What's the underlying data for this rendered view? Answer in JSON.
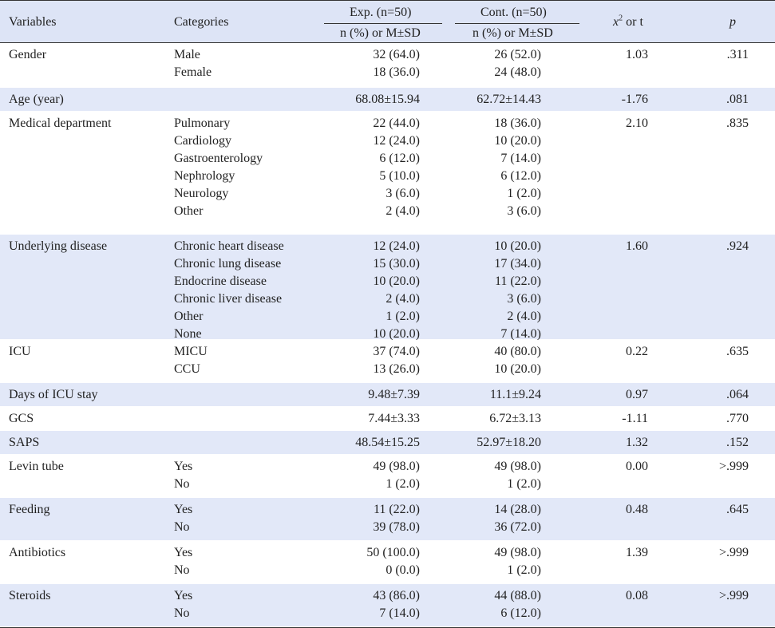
{
  "header": {
    "variables": "Variables",
    "categories": "Categories",
    "exp_group": "Exp. (n=50)",
    "cont_group": "Cont. (n=50)",
    "exp_sub": "n (%) or M±SD",
    "cont_sub": "n (%) or M±SD",
    "stat_x": "x",
    "stat_sup": "2",
    "stat_rest": " or t",
    "p": "p"
  },
  "rows": [
    {
      "variable": "Gender",
      "categories": [
        "Male",
        "Female"
      ],
      "exp": [
        "32 (64.0)",
        "18 (36.0)"
      ],
      "cont": [
        "26 (52.0)",
        "24 (48.0)"
      ],
      "stat": "1.03",
      "p": ".311"
    },
    {
      "variable": "Age (year)",
      "categories": [
        ""
      ],
      "exp": [
        "68.08±15.94"
      ],
      "cont": [
        "62.72±14.43"
      ],
      "stat": "-1.76",
      "p": ".081"
    },
    {
      "variable": "Medical department",
      "categories": [
        "Pulmonary",
        "Cardiology",
        "Gastroenterology",
        "Nephrology",
        "Neurology",
        "Other"
      ],
      "exp": [
        "22 (44.0)",
        "12 (24.0)",
        "6 (12.0)",
        "5 (10.0)",
        "3 (6.0)",
        "2 (4.0)"
      ],
      "cont": [
        "18 (36.0)",
        "10 (20.0)",
        "7 (14.0)",
        "6 (12.0)",
        "1 (2.0)",
        "3 (6.0)"
      ],
      "stat": "2.10",
      "p": ".835"
    },
    {
      "variable": "Underlying disease",
      "categories": [
        "Chronic heart disease",
        "Chronic lung disease",
        "Endocrine disease",
        "Chronic liver disease",
        "Other",
        "None"
      ],
      "exp": [
        "12 (24.0)",
        "15 (30.0)",
        "10 (20.0)",
        "2 (4.0)",
        "1 (2.0)",
        "10 (20.0)"
      ],
      "cont": [
        "10 (20.0)",
        "17 (34.0)",
        "11 (22.0)",
        "3 (6.0)",
        "2 (4.0)",
        "7 (14.0)"
      ],
      "stat": "1.60",
      "p": ".924"
    },
    {
      "variable": "ICU",
      "categories": [
        "MICU",
        "CCU"
      ],
      "exp": [
        "37 (74.0)",
        "13 (26.0)"
      ],
      "cont": [
        "40 (80.0)",
        "10 (20.0)"
      ],
      "stat": "0.22",
      "p": ".635"
    },
    {
      "variable": "Days of ICU stay",
      "categories": [
        ""
      ],
      "exp": [
        "9.48±7.39"
      ],
      "cont": [
        "11.1±9.24"
      ],
      "stat": "0.97",
      "p": ".064"
    },
    {
      "variable": "GCS",
      "categories": [
        ""
      ],
      "exp": [
        "7.44±3.33"
      ],
      "cont": [
        "6.72±3.13"
      ],
      "stat": "-1.11",
      "p": ".770"
    },
    {
      "variable": "SAPS",
      "categories": [
        ""
      ],
      "exp": [
        "48.54±15.25"
      ],
      "cont": [
        "52.97±18.20"
      ],
      "stat": "1.32",
      "p": ".152"
    },
    {
      "variable": "Levin tube",
      "categories": [
        "Yes",
        "No"
      ],
      "exp": [
        "49 (98.0)",
        "1 (2.0)"
      ],
      "cont": [
        "49 (98.0)",
        "1 (2.0)"
      ],
      "stat": "0.00",
      "p": ">.999"
    },
    {
      "variable": "Feeding",
      "categories": [
        "Yes",
        "No"
      ],
      "exp": [
        "11 (22.0)",
        "39 (78.0)"
      ],
      "cont": [
        "14 (28.0)",
        "36 (72.0)"
      ],
      "stat": "0.48",
      "p": ".645"
    },
    {
      "variable": "Antibiotics",
      "categories": [
        "Yes",
        "No"
      ],
      "exp": [
        "50 (100.0)",
        "0 (0.0)"
      ],
      "cont": [
        "49 (98.0)",
        "1 (2.0)"
      ],
      "stat": "1.39",
      "p": ">.999"
    },
    {
      "variable": "Steroids",
      "categories": [
        "Yes",
        "No"
      ],
      "exp": [
        "43 (86.0)",
        "7 (14.0)"
      ],
      "cont": [
        "44 (88.0)",
        "6 (12.0)"
      ],
      "stat": "0.08",
      "p": ">.999"
    }
  ]
}
